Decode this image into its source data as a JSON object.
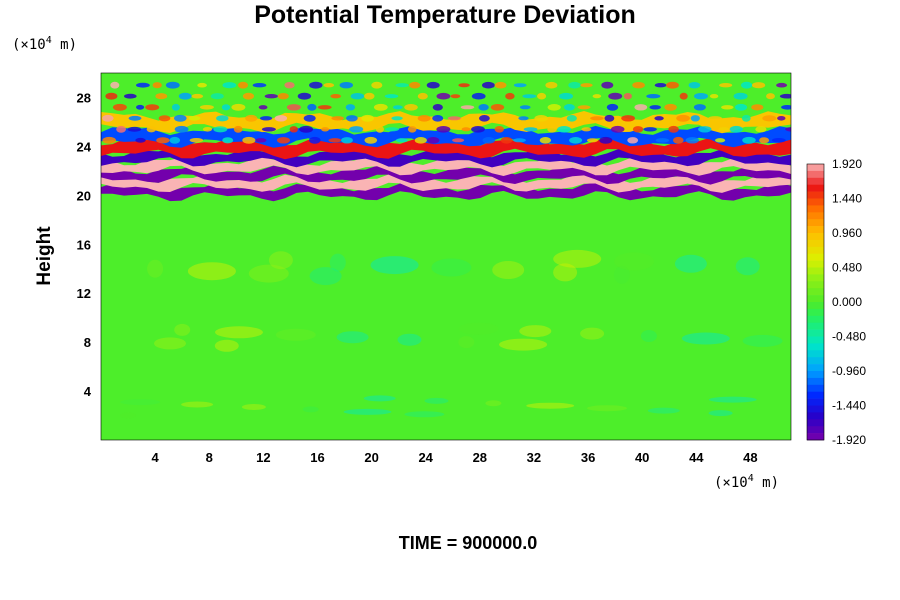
{
  "chart_data": {
    "type": "heatmap",
    "title": "Potential Temperature Deviation",
    "ylabel": "Height",
    "x_unit": {
      "prefix": "(×10",
      "exponent": "4",
      "suffix": " m)"
    },
    "y_unit": {
      "prefix": "(×10",
      "exponent": "4",
      "suffix": " m)"
    },
    "xlim": [
      0,
      51
    ],
    "ylim": [
      0,
      30
    ],
    "x_ticks": [
      "4",
      "8",
      "12",
      "16",
      "20",
      "24",
      "28",
      "32",
      "36",
      "40",
      "44",
      "48"
    ],
    "y_ticks": [
      "4",
      "8",
      "12",
      "16",
      "20",
      "24",
      "28"
    ],
    "x_tick_values": [
      4,
      8,
      12,
      16,
      20,
      24,
      28,
      32,
      36,
      40,
      44,
      48
    ],
    "y_tick_values": [
      4,
      8,
      12,
      16,
      20,
      24,
      28
    ],
    "colorbar": {
      "range": [
        -1.92,
        1.92
      ],
      "labels": [
        "1.920",
        "1.440",
        "0.960",
        "0.480",
        "0.000",
        "-0.480",
        "-0.960",
        "-1.440",
        "-1.920"
      ],
      "label_values": [
        1.92,
        1.44,
        0.96,
        0.48,
        0.0,
        -0.48,
        -0.96,
        -1.44,
        -1.92
      ]
    },
    "field_description": "Mostly near-zero deviations below ~19 height; strong alternating positive/negative horizontal bands between ~19 and ~25; wavy oscillating structures above ~22.",
    "bands": [
      {
        "y": 20.3,
        "value": -1.9
      },
      {
        "y": 21.0,
        "value": 1.92
      },
      {
        "y": 21.7,
        "value": -1.9
      },
      {
        "y": 22.4,
        "value": 1.92
      },
      {
        "y": 23.1,
        "value": -1.7
      },
      {
        "y": 23.9,
        "value": 1.6
      },
      {
        "y": 24.8,
        "value": -1.2
      },
      {
        "y": 26.0,
        "value": 0.9
      }
    ],
    "time_text": "TIME = 900000.0"
  }
}
